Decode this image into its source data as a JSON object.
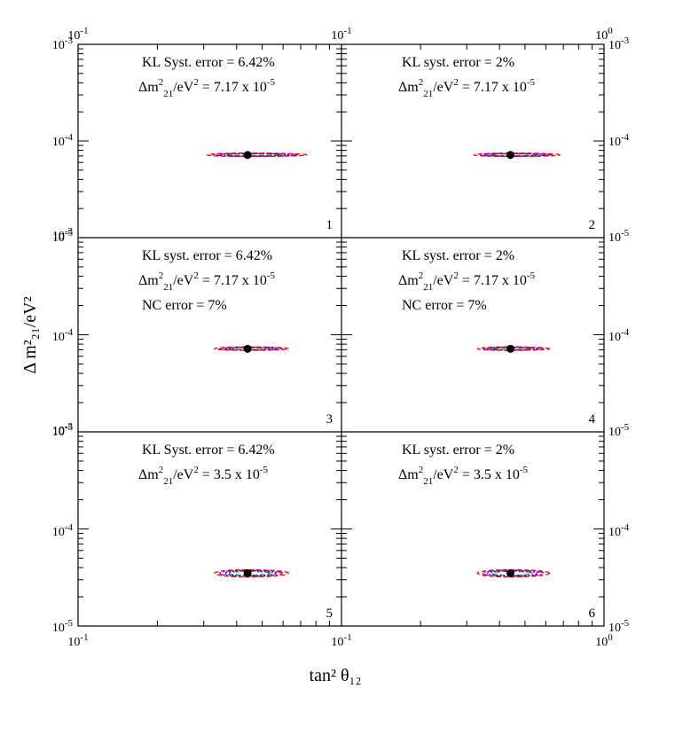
{
  "chart_data": {
    "type": "scatter",
    "xlabel": "tan² θ₁₂",
    "ylabel": "Δ m²₂₁/eV²",
    "xscale": "log",
    "yscale": "log",
    "xlim": [
      0.1,
      1.0
    ],
    "ylim": [
      1e-05,
      0.001
    ],
    "grid": false,
    "tick_labels": {
      "x_left_bottom": "10-1",
      "x_mid_bottom": "10-1",
      "x_right_bottom": "100",
      "x_left_top": "10-1",
      "x_mid_top": "10-1",
      "x_right_top": "100",
      "y_top": "10-3",
      "y_mid": "10-4",
      "y_bottom": "10-5"
    },
    "panels": [
      {
        "id": "1",
        "annotations": [
          "KL Syst. error = 6.42%",
          "Δm²₂₁/eV² = 7.17 x 10⁻⁵"
        ],
        "annotation_parts": [
          {
            "text": "KL Syst. error = 6.42%"
          },
          {
            "pre": "Δm",
            "sup1": "2",
            "sub": "21",
            "mid": "/eV",
            "sup2": "2",
            "post": " = 7.17 x 10",
            "exp": "-5"
          }
        ],
        "best_fit": {
          "x": 0.44,
          "y": 7.17e-05
        },
        "contour_x_range": [
          0.31,
          0.74
        ],
        "contour_y_range": [
          6.9e-05,
          7.5e-05
        ]
      },
      {
        "id": "2",
        "annotations": [
          "KL syst. error = 2%",
          "Δm²₂₁/eV² = 7.17 x 10⁻⁵"
        ],
        "annotation_parts": [
          {
            "text": "KL syst. error = 2%"
          },
          {
            "pre": "Δm",
            "sup1": "2",
            "sub": "21",
            "mid": "/eV",
            "sup2": "2",
            "post": " = 7.17 x 10",
            "exp": "-5"
          }
        ],
        "best_fit": {
          "x": 0.44,
          "y": 7.17e-05
        },
        "contour_x_range": [
          0.32,
          0.68
        ],
        "contour_y_range": [
          6.9e-05,
          7.5e-05
        ]
      },
      {
        "id": "3",
        "annotations": [
          "KL syst. error = 6.42%",
          "Δm²₂₁/eV² = 7.17 x 10⁻⁵",
          "NC error = 7%"
        ],
        "annotation_parts": [
          {
            "text": "KL syst. error = 6.42%"
          },
          {
            "pre": "Δm",
            "sup1": "2",
            "sub": "21",
            "mid": "/eV",
            "sup2": "2",
            "post": " = 7.17 x 10",
            "exp": "-5"
          },
          {
            "text": "NC error = 7%"
          }
        ],
        "best_fit": {
          "x": 0.44,
          "y": 7.17e-05
        },
        "contour_x_range": [
          0.33,
          0.63
        ],
        "contour_y_range": [
          6.9e-05,
          7.5e-05
        ]
      },
      {
        "id": "4",
        "annotations": [
          "KL syst. error = 2%",
          "Δm²₂₁/eV² = 7.17 x 10⁻⁵",
          "NC error = 7%"
        ],
        "annotation_parts": [
          {
            "text": "KL syst. error = 2%"
          },
          {
            "pre": "Δm",
            "sup1": "2",
            "sub": "21",
            "mid": "/eV",
            "sup2": "2",
            "post": " = 7.17 x 10",
            "exp": "-5"
          },
          {
            "text": "NC error = 7%"
          }
        ],
        "best_fit": {
          "x": 0.44,
          "y": 7.17e-05
        },
        "contour_x_range": [
          0.33,
          0.62
        ],
        "contour_y_range": [
          6.9e-05,
          7.5e-05
        ]
      },
      {
        "id": "5",
        "annotations": [
          "KL Syst. error = 6.42%",
          "Δm²₂₁/eV² = 3.5 x 10⁻⁵"
        ],
        "annotation_parts": [
          {
            "text": "KL Syst. error = 6.42%"
          },
          {
            "pre": "Δm",
            "sup1": "2",
            "sub": "21",
            "mid": "/eV",
            "sup2": "2",
            "post": " = 3.5 x 10",
            "exp": "-5"
          }
        ],
        "best_fit": {
          "x": 0.44,
          "y": 3.5e-05
        },
        "contour_x_range": [
          0.33,
          0.63
        ],
        "contour_y_range": [
          3.2e-05,
          3.8e-05
        ]
      },
      {
        "id": "6",
        "annotations": [
          "KL syst. error = 2%",
          "Δm²₂₁/eV² = 3.5 x 10⁻⁵"
        ],
        "annotation_parts": [
          {
            "text": "KL syst. error = 2%"
          },
          {
            "pre": "Δm",
            "sup1": "2",
            "sub": "21",
            "mid": "/eV",
            "sup2": "2",
            "post": " = 3.5 x 10",
            "exp": "-5"
          }
        ],
        "best_fit": {
          "x": 0.44,
          "y": 3.5e-05
        },
        "contour_x_range": [
          0.33,
          0.62
        ],
        "contour_y_range": [
          3.2e-05,
          3.8e-05
        ]
      }
    ],
    "contour_levels": [
      {
        "level": 1,
        "color": "#00aa00",
        "dash": "6,3"
      },
      {
        "level": 2,
        "color": "#0000ff",
        "dash": "2,2"
      },
      {
        "level": 3,
        "color": "#9900cc",
        "dash": "8,2,2,2"
      },
      {
        "level": 4,
        "color": "#ff0000",
        "dash": "5,3"
      }
    ]
  }
}
